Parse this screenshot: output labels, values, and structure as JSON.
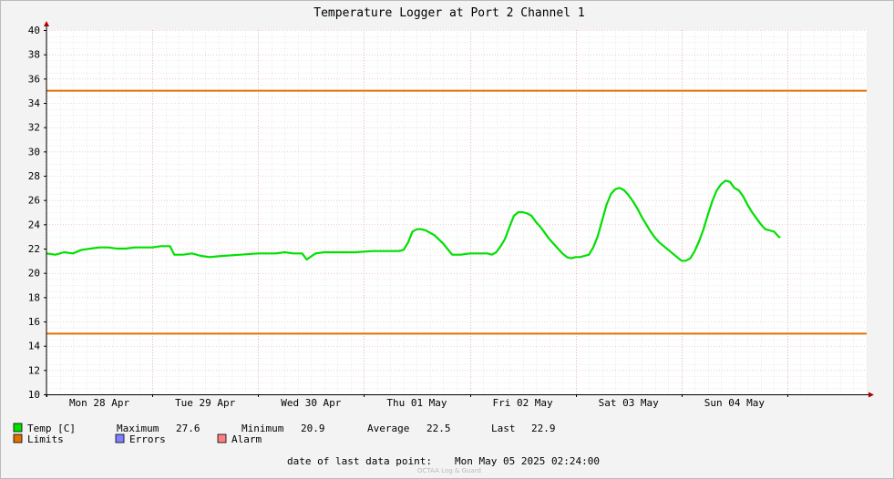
{
  "chart_data": {
    "type": "line",
    "title": "Temperature Logger at Port 2 Channel 1",
    "ylim": [
      10,
      40
    ],
    "y_ticks": [
      10,
      12,
      14,
      16,
      18,
      20,
      22,
      24,
      26,
      28,
      30,
      32,
      34,
      36,
      38,
      40
    ],
    "x_range_hours": [
      0,
      186
    ],
    "x_tick_labels": [
      {
        "label": "Mon 28 Apr",
        "hour": 12
      },
      {
        "label": "Tue 29 Apr",
        "hour": 36
      },
      {
        "label": "Wed 30 Apr",
        "hour": 60
      },
      {
        "label": "Thu 01 May",
        "hour": 84
      },
      {
        "label": "Fri 02 May",
        "hour": 108
      },
      {
        "label": "Sat 03 May",
        "hour": 132
      },
      {
        "label": "Sun 04 May",
        "hour": 156
      }
    ],
    "day_boundaries_hours": [
      0,
      24,
      48,
      72,
      96,
      120,
      144,
      168
    ],
    "grid": true,
    "series": [
      {
        "name": "Temp [C]",
        "color": "#00e000",
        "points": [
          [
            0,
            21.6
          ],
          [
            2,
            21.5
          ],
          [
            4,
            21.7
          ],
          [
            6,
            21.6
          ],
          [
            8,
            21.9
          ],
          [
            10,
            22.0
          ],
          [
            12,
            22.1
          ],
          [
            14,
            22.1
          ],
          [
            16,
            22.0
          ],
          [
            18,
            22.0
          ],
          [
            20,
            22.1
          ],
          [
            22,
            22.1
          ],
          [
            24,
            22.1
          ],
          [
            26,
            22.2
          ],
          [
            28,
            22.2
          ],
          [
            29,
            21.5
          ],
          [
            31,
            21.5
          ],
          [
            33,
            21.6
          ],
          [
            35,
            21.4
          ],
          [
            37,
            21.3
          ],
          [
            40,
            21.4
          ],
          [
            44,
            21.5
          ],
          [
            48,
            21.6
          ],
          [
            52,
            21.6
          ],
          [
            54,
            21.7
          ],
          [
            56,
            21.6
          ],
          [
            58,
            21.6
          ],
          [
            59,
            21.1
          ],
          [
            61,
            21.6
          ],
          [
            63,
            21.7
          ],
          [
            66,
            21.7
          ],
          [
            70,
            21.7
          ],
          [
            74,
            21.8
          ],
          [
            78,
            21.8
          ],
          [
            80,
            21.8
          ],
          [
            81,
            21.9
          ],
          [
            82,
            22.5
          ],
          [
            83,
            23.4
          ],
          [
            84,
            23.6
          ],
          [
            85,
            23.6
          ],
          [
            86,
            23.5
          ],
          [
            88,
            23.1
          ],
          [
            90,
            22.4
          ],
          [
            92,
            21.5
          ],
          [
            94,
            21.5
          ],
          [
            96,
            21.6
          ],
          [
            98,
            21.6
          ],
          [
            100,
            21.6
          ],
          [
            101,
            21.5
          ],
          [
            102,
            21.7
          ],
          [
            103,
            22.2
          ],
          [
            104,
            22.8
          ],
          [
            105,
            23.8
          ],
          [
            106,
            24.7
          ],
          [
            107,
            25.0
          ],
          [
            108,
            25.0
          ],
          [
            109,
            24.9
          ],
          [
            110,
            24.7
          ],
          [
            111,
            24.2
          ],
          [
            112,
            23.8
          ],
          [
            113,
            23.3
          ],
          [
            114,
            22.8
          ],
          [
            115,
            22.4
          ],
          [
            116,
            22.0
          ],
          [
            117,
            21.6
          ],
          [
            118,
            21.3
          ],
          [
            119,
            21.2
          ],
          [
            120,
            21.3
          ],
          [
            121,
            21.3
          ],
          [
            122,
            21.4
          ],
          [
            123,
            21.5
          ],
          [
            124,
            22.1
          ],
          [
            125,
            23.0
          ],
          [
            126,
            24.3
          ],
          [
            127,
            25.6
          ],
          [
            128,
            26.5
          ],
          [
            129,
            26.9
          ],
          [
            130,
            27.0
          ],
          [
            131,
            26.8
          ],
          [
            132,
            26.4
          ],
          [
            133,
            25.9
          ],
          [
            134,
            25.3
          ],
          [
            135,
            24.6
          ],
          [
            136,
            24.0
          ],
          [
            137,
            23.4
          ],
          [
            138,
            22.9
          ],
          [
            139,
            22.5
          ],
          [
            140,
            22.2
          ],
          [
            141,
            21.9
          ],
          [
            142,
            21.6
          ],
          [
            143,
            21.3
          ],
          [
            144,
            21.0
          ],
          [
            145,
            21.0
          ],
          [
            146,
            21.2
          ],
          [
            147,
            21.8
          ],
          [
            148,
            22.6
          ],
          [
            149,
            23.6
          ],
          [
            150,
            24.8
          ],
          [
            151,
            25.9
          ],
          [
            152,
            26.8
          ],
          [
            153,
            27.3
          ],
          [
            154,
            27.6
          ],
          [
            155,
            27.5
          ],
          [
            156,
            27.0
          ],
          [
            157,
            26.8
          ],
          [
            158,
            26.3
          ],
          [
            159,
            25.6
          ],
          [
            160,
            25.0
          ],
          [
            161,
            24.5
          ],
          [
            162,
            24.0
          ],
          [
            163,
            23.6
          ],
          [
            164,
            23.5
          ],
          [
            165,
            23.4
          ],
          [
            166,
            23.0
          ],
          [
            166.4,
            22.9
          ]
        ]
      },
      {
        "name": "Limits",
        "color": "#e07000",
        "values": [
          35,
          15
        ]
      }
    ],
    "stats": {
      "maximum_label": "Maximum",
      "maximum": "27.6",
      "minimum_label": "Minimum",
      "minimum": "20.9",
      "average_label": "Average",
      "average": "22.5",
      "last_label": "Last",
      "last": "22.9"
    },
    "legend": [
      {
        "name": "Temp [C]",
        "color": "#00e000"
      },
      {
        "name": "Limits",
        "color": "#e07000"
      },
      {
        "name": "Errors",
        "color": "#7f7fff"
      },
      {
        "name": "Alarm",
        "color": "#ff7f7f"
      }
    ],
    "footer_label": "date of last data point:",
    "footer_value": "Mon May 05 2025 02:24:00",
    "watermark": "OCTAA Log & Guard"
  }
}
